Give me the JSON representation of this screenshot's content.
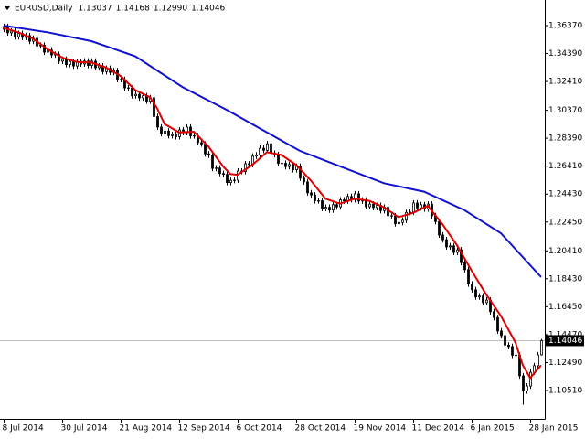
{
  "chart_data": {
    "type": "candlestick",
    "title": "EURUSD,Daily",
    "header_values": [
      {
        "value": 1.13037,
        "label": "1.13037"
      },
      {
        "value": 1.14168,
        "label": "1.14168"
      },
      {
        "value": 1.1299,
        "label": "1.12990"
      },
      {
        "value": 1.14046,
        "label": "1.14046"
      }
    ],
    "open": [
      1.3611,
      1.3631,
      1.3586,
      1.3598,
      1.3558,
      1.3581,
      1.3554,
      1.3566,
      1.3526,
      1.3547,
      1.3493,
      1.3498,
      1.3449,
      1.3464,
      1.3429,
      1.3433,
      1.3385,
      1.3398,
      1.3361,
      1.3383,
      1.3351,
      1.3384,
      1.3365,
      1.3386,
      1.3355,
      1.3385,
      1.3339,
      1.3351,
      1.3311,
      1.3334,
      1.3306,
      1.3318,
      1.3256,
      1.3255,
      1.3196,
      1.3194,
      1.314,
      1.315,
      1.3125,
      1.314,
      1.3102,
      1.3126,
      1.2993,
      1.2918,
      1.2872,
      1.289,
      1.2857,
      1.2864,
      1.285,
      1.2898,
      1.2879,
      1.2918,
      1.2856,
      1.2857,
      1.2808,
      1.2798,
      1.2728,
      1.272,
      1.2625,
      1.2628,
      1.2589,
      1.2583,
      1.2525,
      1.254,
      1.2542,
      1.2606,
      1.2603,
      1.2658,
      1.2653,
      1.2712,
      1.272,
      1.2768,
      1.2753,
      1.28,
      1.2733,
      1.2723,
      1.2661,
      1.2662,
      1.2638,
      1.2653,
      1.2616,
      1.264,
      1.2556,
      1.253,
      1.2452,
      1.2437,
      1.2396,
      1.2396,
      1.2342,
      1.235,
      1.233,
      1.2368,
      1.2353,
      1.2402,
      1.2394,
      1.2426,
      1.2404,
      1.2445,
      1.2394,
      1.2401,
      1.2354,
      1.2372,
      1.2348,
      1.2363,
      1.2326,
      1.235,
      1.229,
      1.2288,
      1.2233,
      1.2242,
      1.2258,
      1.2313,
      1.2316,
      1.238,
      1.2345,
      1.2368,
      1.2338,
      1.2372,
      1.229,
      1.2248,
      1.2153,
      1.212,
      1.2069,
      1.2076,
      1.203,
      1.2048,
      1.1958,
      1.1908,
      1.1806,
      1.1765,
      1.1714,
      1.1721,
      1.1674,
      1.1692,
      1.161,
      1.1568,
      1.1473,
      1.144,
      1.1373,
      1.1363,
      1.1301,
      1.1302,
      1.1155,
      1.1048,
      1.1083,
      1.118,
      1.1227,
      1.13037
    ],
    "high": [
      1.3651,
      1.3651,
      1.3618,
      1.3618,
      1.3601,
      1.3601,
      1.3586,
      1.3586,
      1.3567,
      1.3567,
      1.3518,
      1.3518,
      1.3484,
      1.3484,
      1.3453,
      1.3453,
      1.3418,
      1.3418,
      1.3403,
      1.3403,
      1.3404,
      1.3404,
      1.3406,
      1.3406,
      1.3405,
      1.3405,
      1.3371,
      1.3371,
      1.3354,
      1.3354,
      1.3338,
      1.3338,
      1.3276,
      1.3275,
      1.3216,
      1.3214,
      1.317,
      1.317,
      1.316,
      1.316,
      1.3146,
      1.3146,
      1.3013,
      1.2938,
      1.291,
      1.291,
      1.2884,
      1.2884,
      1.2918,
      1.2918,
      1.2938,
      1.2938,
      1.2877,
      1.2877,
      1.2828,
      1.2818,
      1.2748,
      1.274,
      1.2648,
      1.2648,
      1.2609,
      1.2603,
      1.256,
      1.2562,
      1.2626,
      1.2626,
      1.2678,
      1.2678,
      1.2732,
      1.274,
      1.2788,
      1.2788,
      1.282,
      1.282,
      1.2753,
      1.2743,
      1.2682,
      1.2682,
      1.2673,
      1.2673,
      1.266,
      1.266,
      1.2576,
      1.255,
      1.2472,
      1.2457,
      1.2416,
      1.2416,
      1.237,
      1.237,
      1.2388,
      1.2388,
      1.2422,
      1.2422,
      1.2446,
      1.2446,
      1.2465,
      1.2465,
      1.2421,
      1.2421,
      1.2392,
      1.2392,
      1.2383,
      1.2383,
      1.237,
      1.237,
      1.231,
      1.2308,
      1.2262,
      1.2278,
      1.2333,
      1.2336,
      1.24,
      1.24,
      1.2388,
      1.2388,
      1.2392,
      1.2392,
      1.231,
      1.2268,
      1.2173,
      1.214,
      1.2096,
      1.2096,
      1.2068,
      1.2068,
      1.1978,
      1.1928,
      1.1826,
      1.1785,
      1.1741,
      1.1741,
      1.1712,
      1.1712,
      1.163,
      1.1588,
      1.1493,
      1.146,
      1.1393,
      1.1383,
      1.1322,
      1.1322,
      1.1175,
      1.1103,
      1.12,
      1.1247,
      1.1324,
      1.14168
    ],
    "low": [
      1.3591,
      1.3566,
      1.3566,
      1.3538,
      1.3538,
      1.3534,
      1.3534,
      1.3506,
      1.3506,
      1.3473,
      1.3473,
      1.3429,
      1.3429,
      1.3409,
      1.3409,
      1.3365,
      1.3365,
      1.3341,
      1.3341,
      1.3331,
      1.3331,
      1.3345,
      1.3345,
      1.3335,
      1.3335,
      1.3319,
      1.3319,
      1.3291,
      1.3291,
      1.3286,
      1.3286,
      1.3236,
      1.3235,
      1.3176,
      1.3174,
      1.312,
      1.312,
      1.3105,
      1.3105,
      1.3082,
      1.3082,
      1.2973,
      1.2898,
      1.2852,
      1.2852,
      1.2837,
      1.2837,
      1.283,
      1.283,
      1.2859,
      1.2859,
      1.2836,
      1.2836,
      1.2788,
      1.2778,
      1.2708,
      1.27,
      1.2605,
      1.2605,
      1.2569,
      1.2563,
      1.2505,
      1.2505,
      1.252,
      1.2522,
      1.2583,
      1.2583,
      1.2633,
      1.2633,
      1.2692,
      1.27,
      1.2733,
      1.2733,
      1.2713,
      1.2703,
      1.2641,
      1.2641,
      1.2618,
      1.2618,
      1.2596,
      1.2596,
      1.2536,
      1.251,
      1.2432,
      1.2417,
      1.2376,
      1.2376,
      1.2322,
      1.2322,
      1.231,
      1.231,
      1.2333,
      1.2333,
      1.2374,
      1.2374,
      1.2384,
      1.2384,
      1.2374,
      1.2374,
      1.2334,
      1.2334,
      1.2328,
      1.2328,
      1.2306,
      1.2306,
      1.227,
      1.2268,
      1.2213,
      1.2213,
      1.2222,
      1.2238,
      1.2293,
      1.2296,
      1.2325,
      1.2325,
      1.2318,
      1.2318,
      1.227,
      1.2228,
      1.2133,
      1.21,
      1.2049,
      1.2049,
      1.201,
      1.201,
      1.1938,
      1.1888,
      1.1786,
      1.1745,
      1.1694,
      1.1694,
      1.1654,
      1.1654,
      1.159,
      1.1548,
      1.1453,
      1.142,
      1.1353,
      1.1343,
      1.1281,
      1.1281,
      1.1135,
      1.095,
      1.1028,
      1.1063,
      1.116,
      1.1207,
      1.1299
    ],
    "close": [
      1.3631,
      1.3586,
      1.3598,
      1.3558,
      1.3581,
      1.3554,
      1.3566,
      1.3526,
      1.3547,
      1.3493,
      1.3498,
      1.3449,
      1.3464,
      1.3429,
      1.3433,
      1.3385,
      1.3398,
      1.3361,
      1.3383,
      1.3351,
      1.3384,
      1.3365,
      1.3386,
      1.3355,
      1.3385,
      1.3339,
      1.3351,
      1.3311,
      1.3334,
      1.3306,
      1.3318,
      1.3256,
      1.3255,
      1.3196,
      1.3194,
      1.314,
      1.315,
      1.3125,
      1.314,
      1.3102,
      1.3126,
      1.2993,
      1.2918,
      1.2872,
      1.289,
      1.2857,
      1.2864,
      1.285,
      1.2898,
      1.2879,
      1.2918,
      1.2856,
      1.2857,
      1.2808,
      1.2798,
      1.2728,
      1.272,
      1.2625,
      1.2628,
      1.2589,
      1.2583,
      1.2525,
      1.254,
      1.2542,
      1.2606,
      1.2603,
      1.2658,
      1.2653,
      1.2712,
      1.272,
      1.2768,
      1.2753,
      1.28,
      1.2733,
      1.2723,
      1.2661,
      1.2662,
      1.2638,
      1.2653,
      1.2616,
      1.264,
      1.2556,
      1.253,
      1.2452,
      1.2437,
      1.2396,
      1.2396,
      1.2342,
      1.235,
      1.233,
      1.2368,
      1.2353,
      1.2402,
      1.2394,
      1.2426,
      1.2404,
      1.2445,
      1.2394,
      1.2401,
      1.2354,
      1.2372,
      1.2348,
      1.2363,
      1.2326,
      1.235,
      1.229,
      1.2288,
      1.2233,
      1.2242,
      1.2258,
      1.2313,
      1.2316,
      1.238,
      1.2345,
      1.2368,
      1.2338,
      1.2372,
      1.229,
      1.2248,
      1.2153,
      1.212,
      1.2069,
      1.2076,
      1.203,
      1.2048,
      1.1958,
      1.1908,
      1.1806,
      1.1765,
      1.1714,
      1.1721,
      1.1674,
      1.1692,
      1.161,
      1.1568,
      1.1473,
      1.144,
      1.1373,
      1.1363,
      1.1301,
      1.1302,
      1.1155,
      1.1048,
      1.1083,
      1.118,
      1.1227,
      1.13037,
      1.14046
    ],
    "lines": [
      {
        "color": "#e00000",
        "x": [
          0,
          4,
          8,
          12,
          16,
          20,
          24,
          28,
          32,
          36,
          40,
          42,
          44,
          48,
          52,
          56,
          60,
          62,
          64,
          68,
          72,
          76,
          80,
          84,
          88,
          92,
          96,
          100,
          104,
          108,
          112,
          116,
          120,
          124,
          128,
          132,
          136,
          140,
          142,
          144,
          147
        ],
        "values": [
          1.362,
          1.359,
          1.3545,
          1.347,
          1.341,
          1.338,
          1.3375,
          1.334,
          1.328,
          1.318,
          1.313,
          1.305,
          1.294,
          1.288,
          1.2885,
          1.278,
          1.264,
          1.2585,
          1.258,
          1.265,
          1.274,
          1.272,
          1.265,
          1.254,
          1.241,
          1.2375,
          1.241,
          1.2395,
          1.235,
          1.228,
          1.231,
          1.236,
          1.223,
          1.208,
          1.19,
          1.173,
          1.158,
          1.139,
          1.123,
          1.114,
          1.123
        ]
      },
      {
        "color": "#1010d0",
        "x": [
          0,
          12,
          24,
          36,
          49,
          61,
          70,
          81,
          94,
          104,
          115,
          126,
          136,
          147
        ],
        "values": [
          1.3637,
          1.359,
          1.3527,
          1.342,
          1.32,
          1.304,
          1.291,
          1.275,
          1.262,
          1.252,
          1.246,
          1.233,
          1.2166,
          1.1855
        ]
      }
    ],
    "current_price": {
      "value": 1.14046,
      "label": "1.14046"
    },
    "xlim": [
      -1,
      148
    ],
    "xticks": [
      {
        "value": 0,
        "label": "8 Jul 2014"
      },
      {
        "value": 16,
        "label": "30 Jul 2014"
      },
      {
        "value": 32,
        "label": "21 Aug 2014"
      },
      {
        "value": 48,
        "label": "12 Sep 2014"
      },
      {
        "value": 64,
        "label": "6 Oct 2014"
      },
      {
        "value": 80,
        "label": "28 Oct 2014"
      },
      {
        "value": 96,
        "label": "19 Nov 2014"
      },
      {
        "value": 112,
        "label": "11 Dec 2014"
      },
      {
        "value": 128,
        "label": "6 Jan 2015"
      },
      {
        "value": 144,
        "label": "28 Jan 2015"
      }
    ],
    "ylim": [
      1.08501,
      1.38185
    ],
    "yticks": [
      {
        "value": 1.3637,
        "label": "1.36370"
      },
      {
        "value": 1.3439,
        "label": "1.34390"
      },
      {
        "value": 1.3241,
        "label": "1.32410"
      },
      {
        "value": 1.3037,
        "label": "1.30370"
      },
      {
        "value": 1.2839,
        "label": "1.28390"
      },
      {
        "value": 1.2641,
        "label": "1.26410"
      },
      {
        "value": 1.2443,
        "label": "1.24430"
      },
      {
        "value": 1.2245,
        "label": "1.22450"
      },
      {
        "value": 1.2041,
        "label": "1.20410"
      },
      {
        "value": 1.1843,
        "label": "1.18430"
      },
      {
        "value": 1.1645,
        "label": "1.16450"
      },
      {
        "value": 1.1447,
        "label": "1.14470"
      },
      {
        "value": 1.1249,
        "label": "1.12490"
      },
      {
        "value": 1.1051,
        "label": "1.10510"
      }
    ]
  }
}
